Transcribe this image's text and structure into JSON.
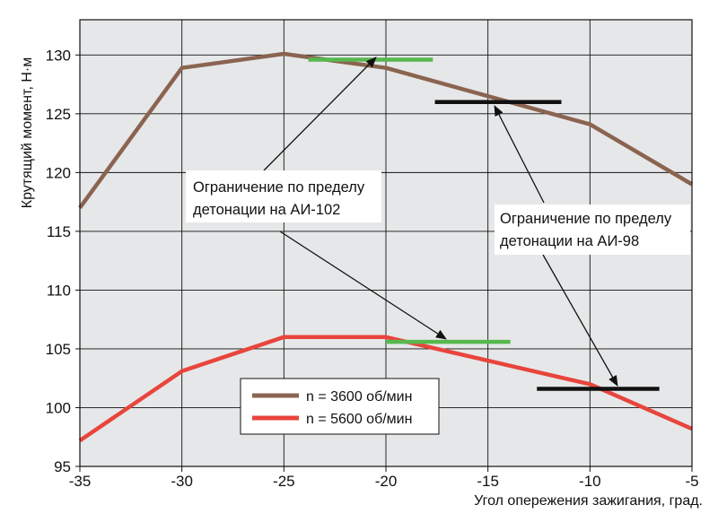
{
  "chart_data": {
    "type": "line",
    "xlabel": "Угол опережения зажигания, град.",
    "ylabel": "Крутящий момент, Н·м",
    "xlim": [
      -35,
      -5
    ],
    "ylim": [
      95,
      133
    ],
    "x_ticks": [
      -35,
      -30,
      -25,
      -20,
      -15,
      -10,
      -5
    ],
    "y_ticks": [
      95,
      100,
      105,
      110,
      115,
      120,
      125,
      130
    ],
    "grid": true,
    "legend_position": "bottom-center",
    "series": [
      {
        "name": "n = 3600 об/мин",
        "color": "#8a6450",
        "x": [
          -35,
          -30,
          -25,
          -20,
          -10,
          -5
        ],
        "y": [
          117,
          128.9,
          130.1,
          128.9,
          124.1,
          119
        ]
      },
      {
        "name": "n = 5600 об/мин",
        "color": "#e8453c",
        "x": [
          -35,
          -30,
          -25,
          -20,
          -10,
          -5
        ],
        "y": [
          97.2,
          103.1,
          106,
          106,
          102,
          98.2
        ]
      }
    ],
    "limit_markers": [
      {
        "label": "АИ-102",
        "color": "#56b84e",
        "x_range": [
          -23.8,
          -17.7
        ],
        "y": 129.6
      },
      {
        "label": "АИ-102",
        "color": "#56b84e",
        "x_range": [
          -20.0,
          -13.9
        ],
        "y": 105.6
      },
      {
        "label": "АИ-98",
        "color": "#111111",
        "x_range": [
          -17.6,
          -11.4
        ],
        "y": 126
      },
      {
        "label": "АИ-98",
        "color": "#111111",
        "x_range": [
          -12.6,
          -6.6
        ],
        "y": 101.6
      }
    ],
    "annotations": [
      {
        "lines": [
          "Ограничение по пределу",
          "детонации на АИ-102"
        ]
      },
      {
        "lines": [
          "Ограничение по пределу",
          "детонации на АИ-98"
        ]
      }
    ]
  }
}
